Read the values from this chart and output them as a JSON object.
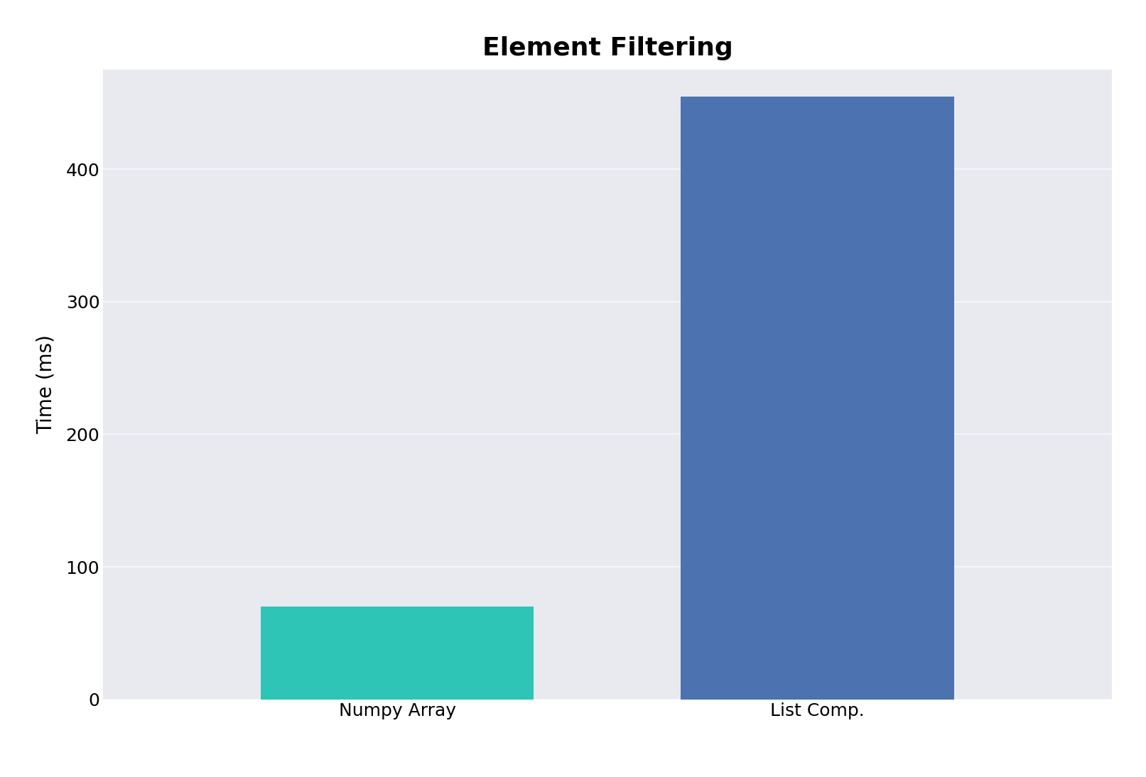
{
  "title": "Element Filtering",
  "ylabel": "Time (ms)",
  "categories": [
    "Numpy Array",
    "List Comp."
  ],
  "values": [
    70,
    455
  ],
  "bar_colors": [
    "#2ec4b6",
    "#4c72b0"
  ],
  "ylim": [
    0,
    475
  ],
  "yticks": [
    0,
    100,
    200,
    300,
    400
  ],
  "figure_background_color": "#ffffff",
  "axes_background_color": "#e8eaf0",
  "grid_color": "#f5f5fa",
  "title_fontsize": 26,
  "label_fontsize": 20,
  "tick_fontsize": 18,
  "bar_width": 0.65
}
